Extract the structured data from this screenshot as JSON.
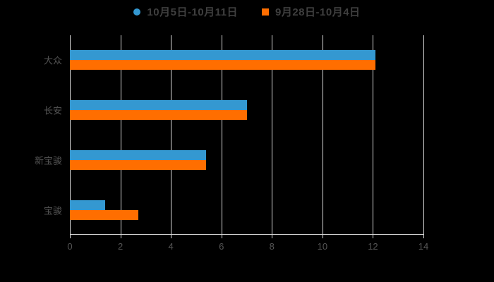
{
  "colors": {
    "background": "#000000",
    "grid": "#d6d6d6",
    "axis": "#d6d6d6",
    "tick_label": "#565656",
    "category_label": "#545454",
    "legend_text": "#3f3f3f",
    "series_blue": "#3498d1",
    "series_orange": "#ff6e00"
  },
  "chart_data": {
    "type": "bar",
    "orientation": "horizontal",
    "title": "",
    "xlabel": "",
    "ylabel": "",
    "grid": true,
    "legend_position": "top",
    "xlim": [
      0,
      14
    ],
    "x_ticks": [
      0,
      2,
      4,
      6,
      8,
      10,
      12,
      14
    ],
    "categories": [
      "大众",
      "长安",
      "新宝骏",
      "宝骏"
    ],
    "series": [
      {
        "name": "10月5日-10月11日",
        "marker": "circle",
        "color": "#3498d1",
        "values": [
          12.1,
          7.0,
          5.4,
          1.4
        ]
      },
      {
        "name": "9月28日-10月4日",
        "marker": "square",
        "color": "#ff6e00",
        "values": [
          12.1,
          7.0,
          5.4,
          2.7
        ]
      }
    ]
  }
}
